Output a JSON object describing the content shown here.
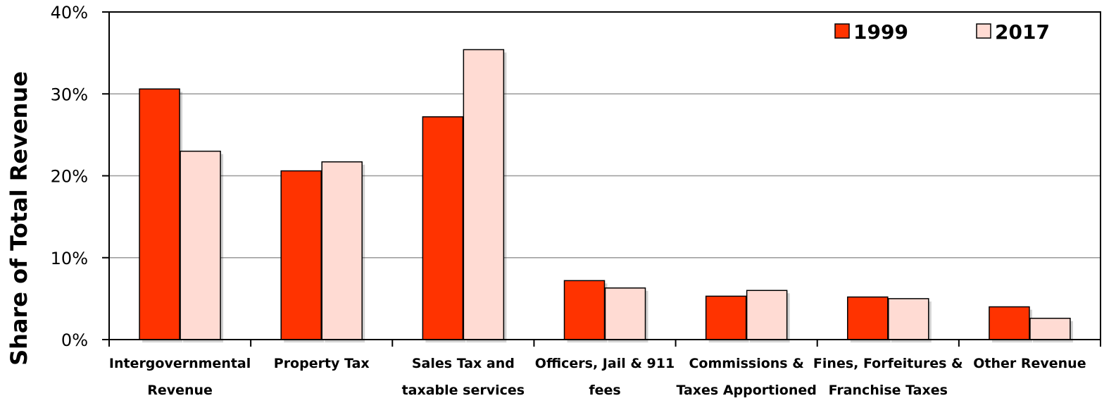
{
  "chart_data": {
    "type": "bar",
    "categories": [
      [
        "Intergovernmental",
        "Revenue"
      ],
      [
        "Property Tax"
      ],
      [
        "Sales Tax and",
        "taxable services"
      ],
      [
        "Officers, Jail & 911",
        "fees"
      ],
      [
        "Commissions &",
        "Taxes Apportioned"
      ],
      [
        "Fines, Forfeitures &",
        "Franchise Taxes"
      ],
      [
        "Other Revenue"
      ]
    ],
    "series": [
      {
        "name": "1999",
        "color": "#ff3300",
        "values": [
          30.6,
          20.6,
          27.2,
          7.2,
          5.3,
          5.2,
          4.0
        ]
      },
      {
        "name": "2017",
        "color": "#ffdbd3",
        "values": [
          23.0,
          21.7,
          35.4,
          6.3,
          6.0,
          5.0,
          2.6
        ]
      }
    ],
    "title": "",
    "xlabel": "",
    "ylabel": "Share of Total Revenue",
    "ylim": [
      0,
      40
    ],
    "yticks": [
      0,
      10,
      20,
      30,
      40
    ],
    "ytick_labels": [
      "0%",
      "10%",
      "20%",
      "30%",
      "40%"
    ],
    "grid": true,
    "legend_position": "top-right"
  }
}
